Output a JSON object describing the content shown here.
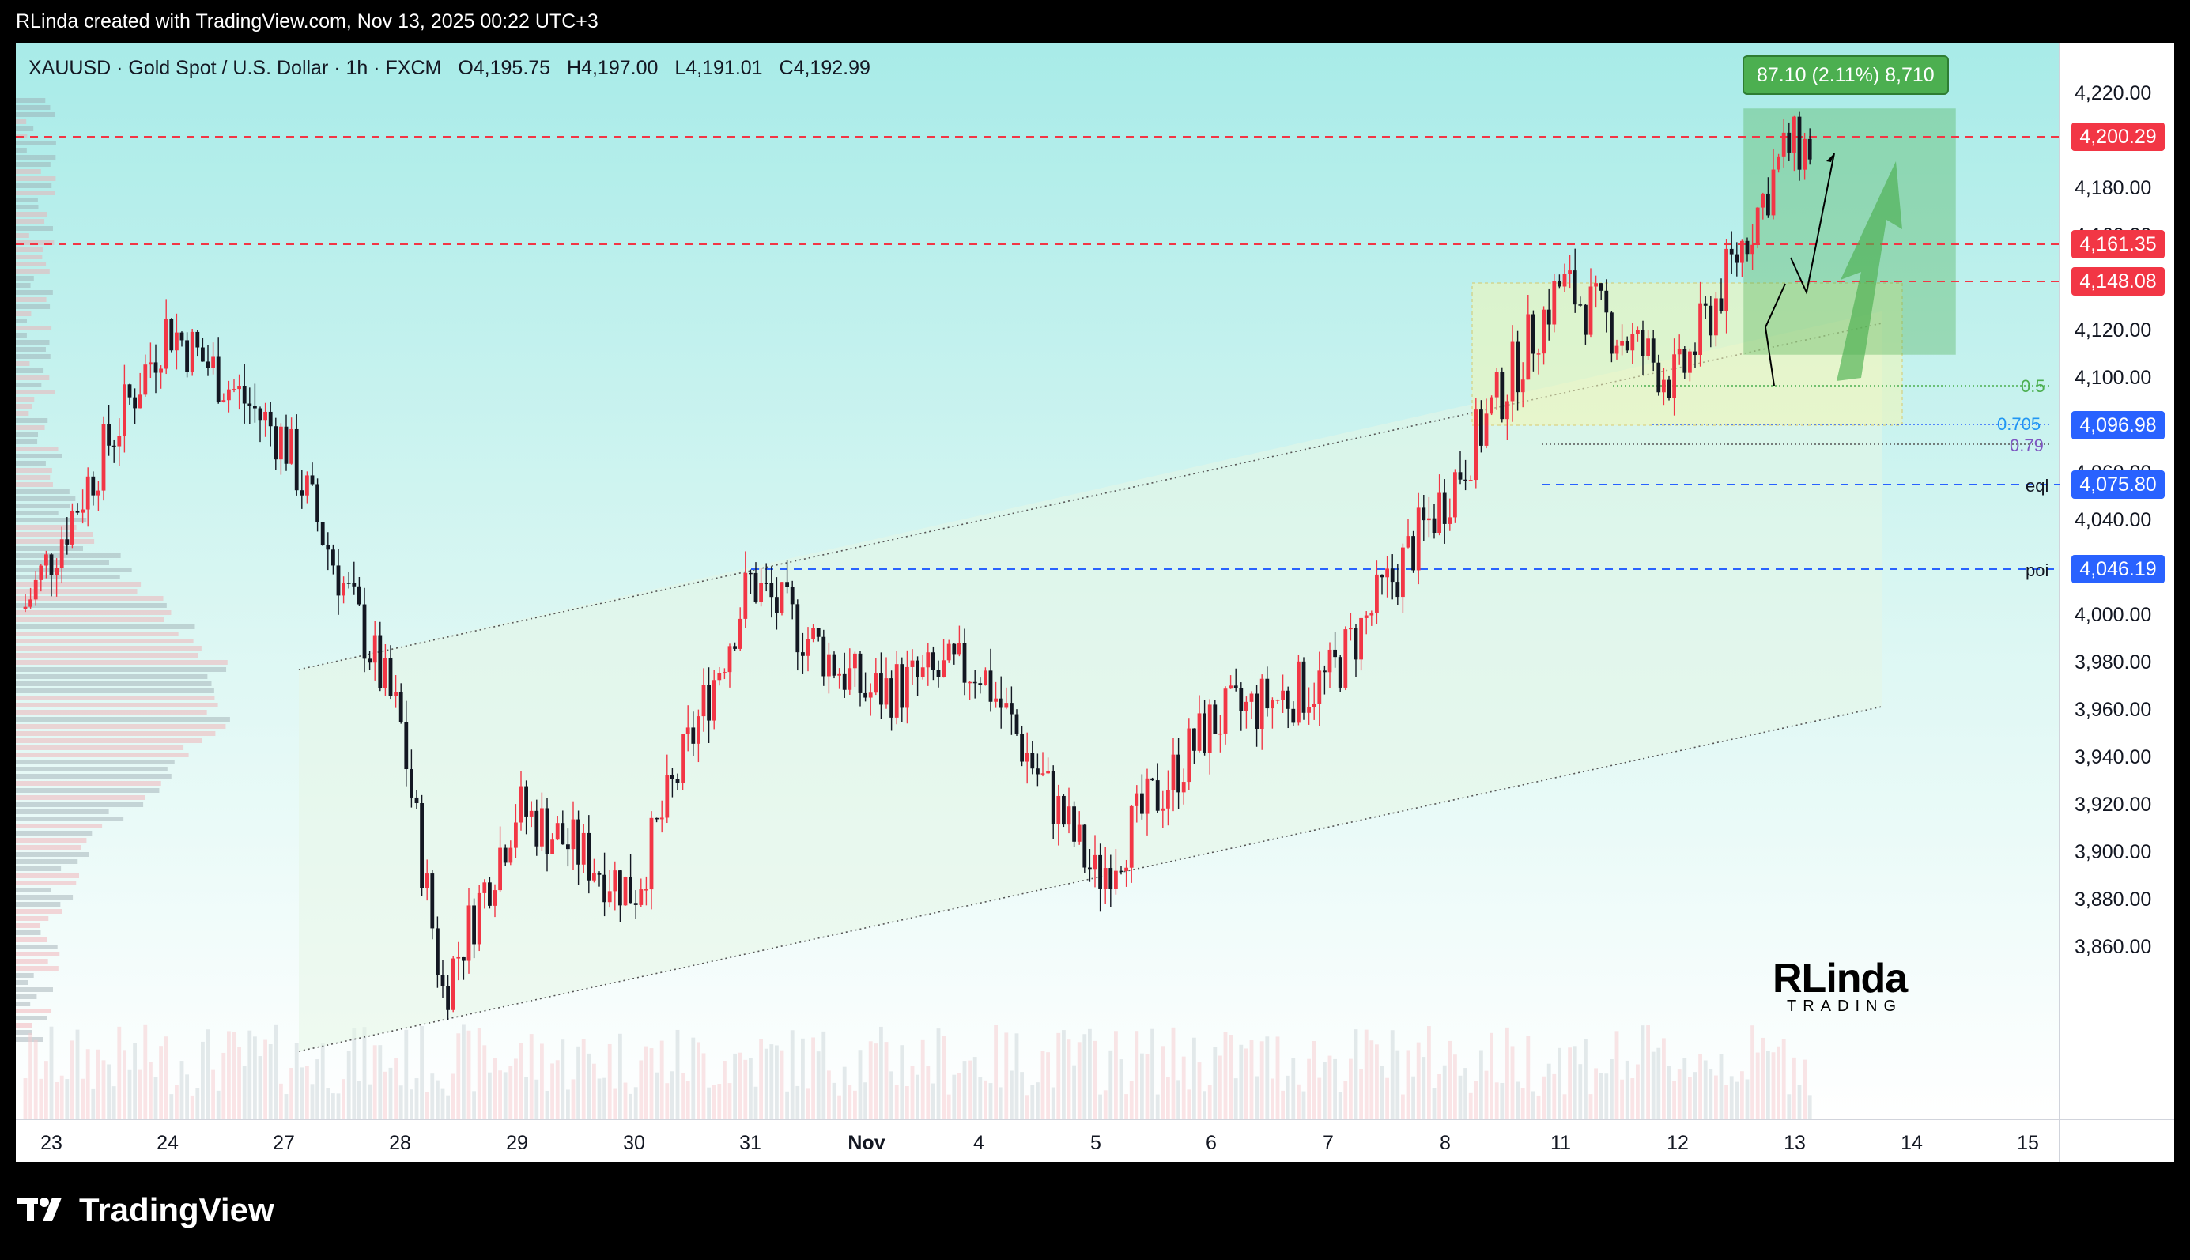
{
  "header": {
    "caption": "RLinda created with TradingView.com, Nov 13, 2025 00:22 UTC+3"
  },
  "legend": {
    "symbol": "XAUUSD · Gold Spot / U.S. Dollar · 1h · FXCM",
    "open": "O4,195.75",
    "high": "H4,197.00",
    "low": "L4,191.01",
    "close": "C4,192.99"
  },
  "measure": {
    "label": "87.10 (2.11%) 8,710"
  },
  "price_labels": [
    {
      "text": "4,200.29",
      "color": "#f23645"
    },
    {
      "text": "4,161.35",
      "color": "#f23645"
    },
    {
      "text": "4,148.08",
      "color": "#f23645"
    },
    {
      "text": "4,096.98",
      "color": "#2962ff"
    },
    {
      "text": "4,075.80",
      "color": "#2962ff"
    },
    {
      "text": "4,046.19",
      "color": "#2962ff"
    }
  ],
  "fib_labels": {
    "half": "0.5",
    "f705": "0.705",
    "f79": "0.79"
  },
  "level_labels": {
    "eql": "eql",
    "poi": "poi"
  },
  "y_axis": [
    "4,220.00",
    "4,200.00",
    "4,180.00",
    "4,160.00",
    "4,140.00",
    "4,120.00",
    "4,100.00",
    "4,080.00",
    "4,060.00",
    "4,040.00",
    "4,020.00",
    "4,000.00",
    "3,980.00",
    "3,960.00",
    "3,940.00",
    "3,920.00",
    "3,900.00",
    "3,880.00",
    "3,860.00"
  ],
  "x_axis": [
    "23",
    "24",
    "27",
    "28",
    "29",
    "30",
    "31",
    "Nov",
    "4",
    "5",
    "6",
    "7",
    "8",
    "11",
    "12",
    "13",
    "14",
    "15"
  ],
  "watermark": {
    "main": "RLinda",
    "sub": "TRADING"
  },
  "footer": {
    "brand": "TradingView"
  },
  "colors": {
    "bull": "#f23645",
    "bear": "#131722",
    "support": "#2962ff",
    "resistance": "#f23645",
    "target": "#4caf50"
  },
  "chart_data": {
    "type": "candlestick",
    "symbol": "XAUUSD",
    "interval": "1h",
    "ylim": [
      3850,
      4230
    ],
    "close_path": [
      {
        "x": "23",
        "y": 4030
      },
      {
        "x": "24",
        "y": 4130
      },
      {
        "x": "27",
        "y": 4090
      },
      {
        "x": "28",
        "y": 3990
      },
      {
        "x": "28",
        "y": 3895
      },
      {
        "x": "29",
        "y": 3960
      },
      {
        "x": "30",
        "y": 3930
      },
      {
        "x": "31",
        "y": 4040
      },
      {
        "x": "Nov",
        "y": 4000
      },
      {
        "x": "4",
        "y": 4010
      },
      {
        "x": "5",
        "y": 3935
      },
      {
        "x": "6",
        "y": 3990
      },
      {
        "x": "7",
        "y": 4005
      },
      {
        "x": "8",
        "y": 4070
      },
      {
        "x": "11",
        "y": 4145
      },
      {
        "x": "12",
        "y": 4110
      },
      {
        "x": "13",
        "y": 4193
      }
    ],
    "levels": [
      4200.29,
      4161.35,
      4148.08,
      4096.98,
      4075.8,
      4046.19
    ]
  }
}
